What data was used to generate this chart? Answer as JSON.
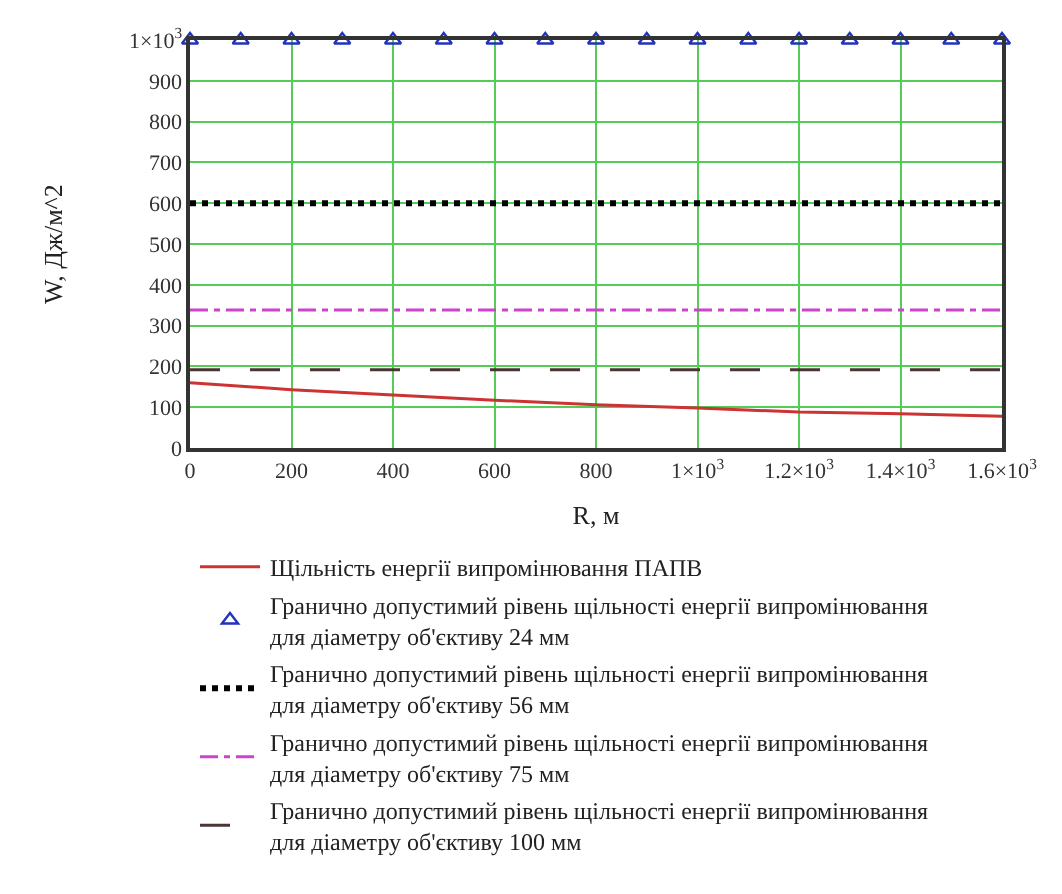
{
  "chart_data": {
    "type": "line",
    "xlabel": "R, м",
    "ylabel": "W, Дж/м^2",
    "xlim": [
      0,
      1600
    ],
    "ylim": [
      0,
      1000
    ],
    "xticks": [
      0,
      200,
      400,
      600,
      800,
      {
        "value": 1000,
        "label": "1×10$^{3}$"
      },
      {
        "value": 1200,
        "label": "1.2×10$^{3}$"
      },
      {
        "value": 1400,
        "label": "1.4×10$^{3}$"
      },
      {
        "value": 1600,
        "label": "1.6×10$^{3}$"
      }
    ],
    "yticks": [
      0,
      100,
      200,
      300,
      400,
      500,
      600,
      700,
      800,
      900,
      {
        "value": 1000,
        "label": "1×10$^{3}$"
      }
    ],
    "grid": true,
    "legend": "bottom",
    "series": [
      {
        "name": "Щільність енергії випромінювання ПАПВ",
        "color": "#cc3333",
        "line_style": "solid",
        "marker": "none",
        "x": [
          0,
          200,
          400,
          600,
          800,
          1000,
          1200,
          1400,
          1600
        ],
        "values": [
          160,
          143,
          130,
          117,
          106,
          98,
          88,
          84,
          78
        ]
      },
      {
        "name": "Гранично допустимий рівень щільності енергії випромінювання для діаметру об'єктиву 24 мм",
        "type": "scatter",
        "color": "#2233bb",
        "line_style": "none",
        "marker": "triangle",
        "x": [
          0,
          100,
          200,
          300,
          400,
          500,
          600,
          700,
          800,
          900,
          1000,
          1100,
          1200,
          1300,
          1400,
          1500,
          1600
        ],
        "values": [
          1000,
          1000,
          1000,
          1000,
          1000,
          1000,
          1000,
          1000,
          1000,
          1000,
          1000,
          1000,
          1000,
          1000,
          1000,
          1000,
          1000
        ]
      },
      {
        "name": "Гранично допустимий рівень щільності енергії випромінювання для діаметру об'єктиву 56 мм",
        "color": "#000000",
        "line_style": "dotted",
        "marker": "none",
        "x": [
          0,
          1600
        ],
        "values": [
          600,
          600
        ]
      },
      {
        "name": "Гранично допустимий рівень щільності енергії випромінювання для діаметру об'єктиву 75 мм",
        "color": "#cc44cc",
        "line_style": "dashdot",
        "marker": "none",
        "x": [
          0,
          1600
        ],
        "values": [
          338,
          338
        ]
      },
      {
        "name": "Гранично допустимий рівень щільності енергії випромінювання для діаметру об'єктиву 100 мм",
        "color": "#4a3535",
        "line_style": "dashed",
        "marker": "none",
        "x": [
          0,
          1600
        ],
        "values": [
          192,
          192
        ]
      }
    ]
  }
}
